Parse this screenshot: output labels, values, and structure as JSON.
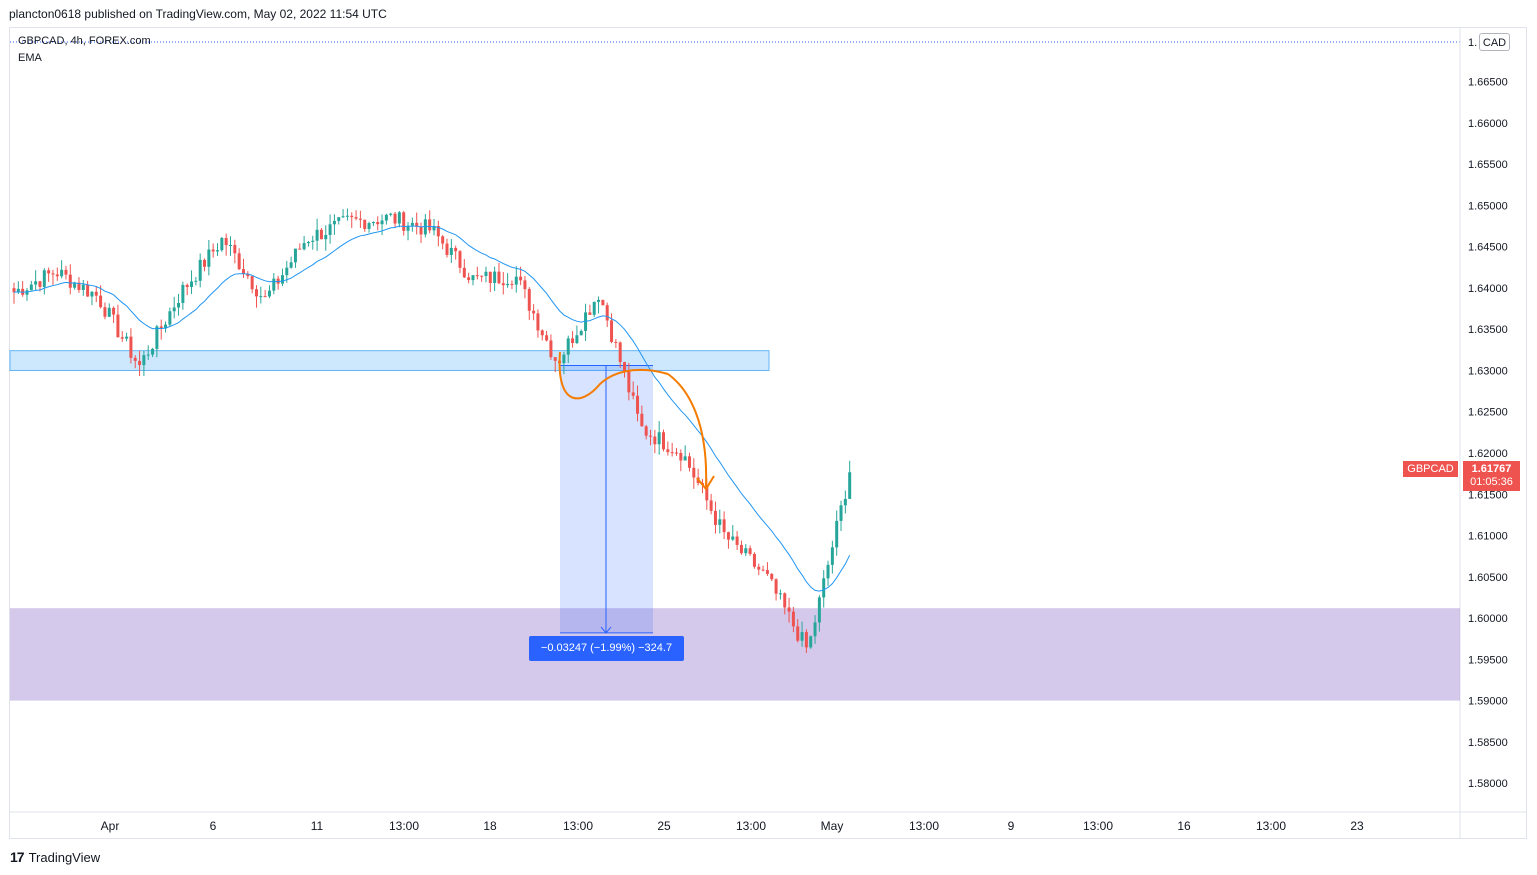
{
  "header": {
    "published_text": "plancton0618 published on TradingView.com, May 02, 2022 11:54 UTC"
  },
  "legend": {
    "symbol_line": "GBPCAD, 4h, FOREX.com",
    "indicator": "EMA"
  },
  "currency_button": "CAD",
  "price_tag": {
    "symbol": "GBPCAD",
    "price": "1.61767",
    "countdown": "01:05:36"
  },
  "measure_label": "−0.03247 (−1.99%) −324.7",
  "footer": {
    "logo": "17",
    "brand": "TradingView"
  },
  "colors": {
    "up": "#26a69a",
    "down": "#ef5350",
    "ema": "#2196f3",
    "blue_zone": "#90caf9",
    "purple_zone": "#b39ddb",
    "orange": "#f57c00",
    "accent": "#2962ff"
  },
  "chart_data": {
    "type": "candlestick",
    "title": "",
    "y_ticks": [
      "1.66500",
      "1.66000",
      "1.65500",
      "1.65000",
      "1.64500",
      "1.64000",
      "1.63500",
      "1.63000",
      "1.62500",
      "1.62000",
      "1.61500",
      "1.61000",
      "1.60500",
      "1.60000",
      "1.59500",
      "1.59000",
      "1.58500",
      "1.58000"
    ],
    "y_top_clipped_label": "1.",
    "x_ticks": [
      "Apr",
      "6",
      "11",
      "13:00",
      "18",
      "13:00",
      "25",
      "13:00",
      "May",
      "13:00",
      "9",
      "13:00",
      "16",
      "13:00",
      "23"
    ],
    "ylim": [
      1.5765,
      1.6715
    ],
    "zones": [
      {
        "name": "support-band",
        "price_low": 1.63,
        "price_high": 1.6324
      },
      {
        "name": "target-zone",
        "price_low": 1.59,
        "price_high": 1.6012
      }
    ],
    "measure": {
      "from_price": 1.6306,
      "to_price": 1.5982,
      "change": -0.03247,
      "percent": -1.99,
      "pips": -324.7
    },
    "ohlc_anchors": [
      {
        "t": "Mar 31",
        "close": 1.6395
      },
      {
        "t": "Apr 1",
        "close": 1.642
      },
      {
        "t": "Apr 4",
        "close": 1.639
      },
      {
        "t": "Apr 6",
        "close": 1.6305
      },
      {
        "t": "Apr 7",
        "close": 1.6395
      },
      {
        "t": "Apr 8",
        "close": 1.646
      },
      {
        "t": "Apr 11",
        "close": 1.6385
      },
      {
        "t": "Apr 12",
        "close": 1.646
      },
      {
        "t": "Apr 13",
        "close": 1.648
      },
      {
        "t": "Apr 14",
        "close": 1.6485
      },
      {
        "t": "Apr 18",
        "close": 1.647
      },
      {
        "t": "Apr 19",
        "close": 1.641
      },
      {
        "t": "Apr 20",
        "close": 1.6415
      },
      {
        "t": "Apr 21",
        "close": 1.631
      },
      {
        "t": "Apr 22",
        "close": 1.6395
      },
      {
        "t": "Apr 25",
        "close": 1.623
      },
      {
        "t": "Apr 26",
        "close": 1.62
      },
      {
        "t": "Apr 27",
        "close": 1.61
      },
      {
        "t": "Apr 28",
        "close": 1.605
      },
      {
        "t": "Apr 29",
        "close": 1.596
      },
      {
        "t": "May 2",
        "close": 1.61767
      }
    ]
  }
}
